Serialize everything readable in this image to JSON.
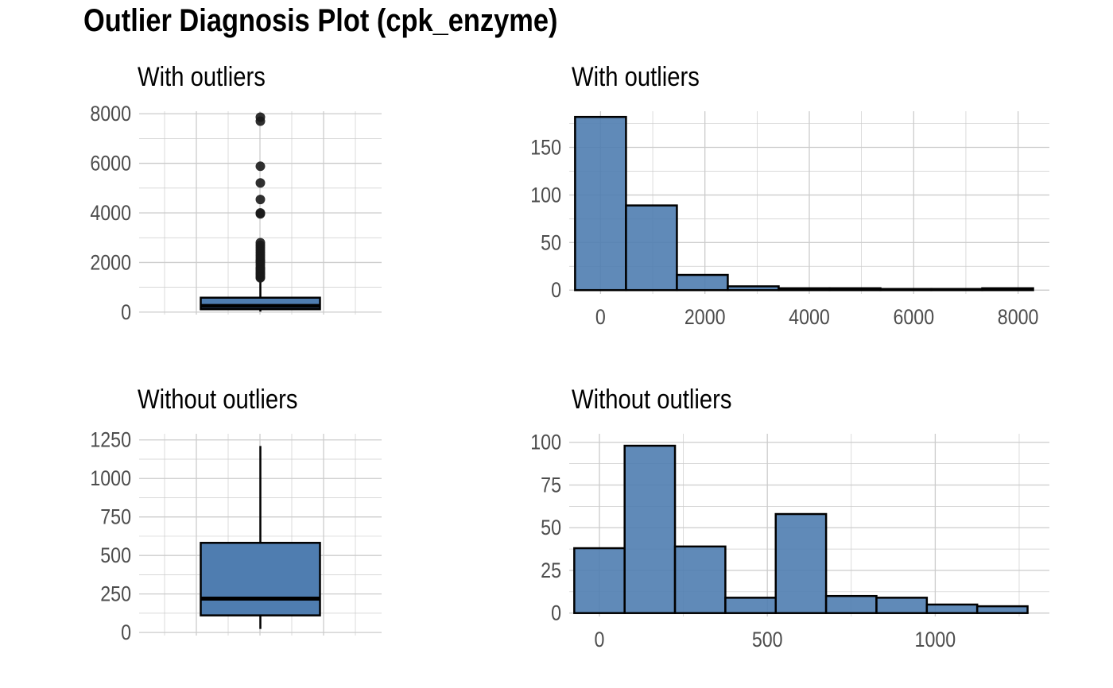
{
  "title": "Outlier Diagnosis Plot (cpk_enzyme)",
  "colors": {
    "fill": "#4F7DB0",
    "stroke": "#000000",
    "grid": "#CCCCCC",
    "tick_text": "#4D4D4D",
    "point": "#1a1a1a"
  },
  "chart_data": [
    {
      "type": "box",
      "title": "With outliers",
      "xlabel": "",
      "ylabel": "",
      "ylim": [
        -100,
        8100
      ],
      "yticks": [
        0,
        2000,
        4000,
        6000,
        8000
      ],
      "grid": true,
      "box": {
        "q1": 116,
        "median": 250,
        "q3": 582,
        "whisker_low": 23,
        "whisker_high": 1280
      },
      "outliers": [
        1380,
        1420,
        1500,
        1560,
        1620,
        1700,
        1760,
        1800,
        1900,
        2000,
        2060,
        2100,
        2200,
        2300,
        2400,
        2500,
        2600,
        2700,
        2800,
        3960,
        4000,
        4540,
        5210,
        5880,
        7700,
        7860
      ]
    },
    {
      "type": "bar",
      "title": "With outliers",
      "xlabel": "",
      "ylabel": "",
      "xlim": [
        -600,
        8600
      ],
      "ylim": [
        -4,
        188
      ],
      "xticks": [
        0,
        2000,
        4000,
        6000,
        8000
      ],
      "yticks": [
        0,
        50,
        100,
        150
      ],
      "grid": true,
      "bins": [
        {
          "x0": -488,
          "x1": 488,
          "count": 182
        },
        {
          "x0": 488,
          "x1": 1463,
          "count": 89
        },
        {
          "x0": 1463,
          "x1": 2438,
          "count": 16
        },
        {
          "x0": 2438,
          "x1": 3413,
          "count": 4
        },
        {
          "x0": 3413,
          "x1": 4388,
          "count": 2
        },
        {
          "x0": 4388,
          "x1": 5363,
          "count": 2
        },
        {
          "x0": 5363,
          "x1": 6338,
          "count": 1
        },
        {
          "x0": 6338,
          "x1": 7313,
          "count": 0
        },
        {
          "x0": 7313,
          "x1": 8288,
          "count": 2
        }
      ]
    },
    {
      "type": "box",
      "title": "Without outliers",
      "xlabel": "",
      "ylabel": "",
      "ylim": [
        -20,
        1290
      ],
      "yticks": [
        0,
        250,
        500,
        750,
        1000,
        1250
      ],
      "grid": true,
      "box": {
        "q1": 111,
        "median": 220,
        "q3": 582,
        "whisker_low": 23,
        "whisker_high": 1211
      },
      "outliers": []
    },
    {
      "type": "bar",
      "title": "Without outliers",
      "xlabel": "",
      "ylabel": "",
      "xlim": [
        -90,
        1340
      ],
      "ylim": [
        -2,
        105
      ],
      "xticks": [
        0,
        500,
        1000
      ],
      "yticks": [
        0,
        25,
        50,
        75,
        100
      ],
      "grid": true,
      "bins": [
        {
          "x0": -75,
          "x1": 75,
          "count": 38
        },
        {
          "x0": 75,
          "x1": 225,
          "count": 98
        },
        {
          "x0": 225,
          "x1": 375,
          "count": 39
        },
        {
          "x0": 375,
          "x1": 525,
          "count": 9
        },
        {
          "x0": 525,
          "x1": 675,
          "count": 58
        },
        {
          "x0": 675,
          "x1": 825,
          "count": 10
        },
        {
          "x0": 825,
          "x1": 975,
          "count": 9
        },
        {
          "x0": 975,
          "x1": 1125,
          "count": 5
        },
        {
          "x0": 1125,
          "x1": 1275,
          "count": 4
        }
      ]
    }
  ]
}
